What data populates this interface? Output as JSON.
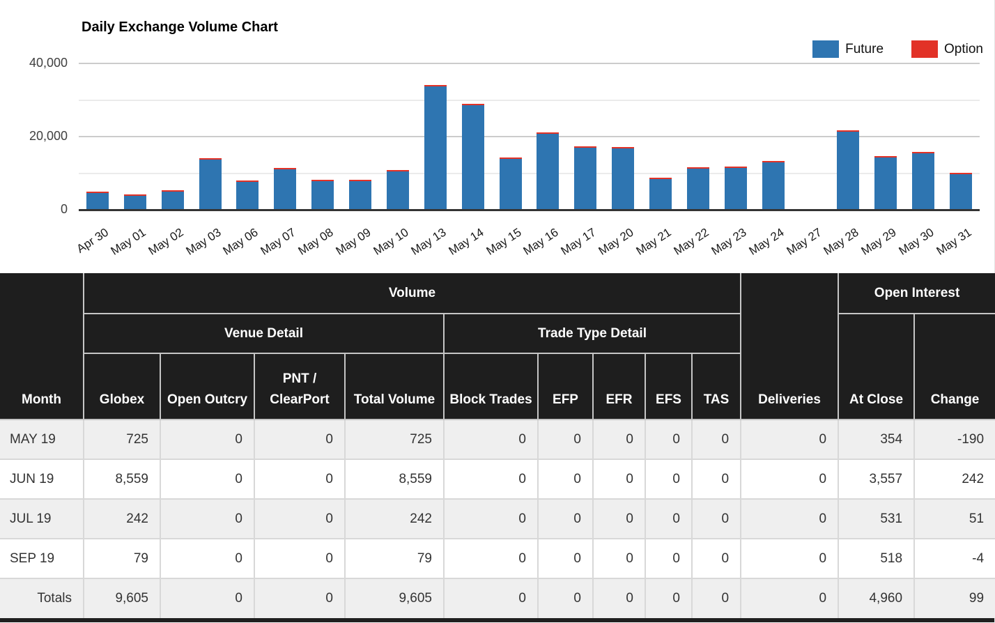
{
  "chart": {
    "title": "Daily Exchange Volume Chart",
    "colors": {
      "future": "#2e75b1",
      "option": "#e23227",
      "axis": "#333333",
      "grid_major": "#cccccc",
      "grid_minor": "#ebebeb"
    }
  },
  "chart_data": {
    "type": "bar",
    "stacked": true,
    "title": "Daily Exchange Volume Chart",
    "xlabel": "",
    "ylabel": "",
    "ylim": [
      0,
      40000
    ],
    "gridlines": [
      10000,
      20000,
      30000,
      40000
    ],
    "y_ticks": [
      {
        "label": "40,000",
        "value": 40000
      },
      {
        "label": "20,000",
        "value": 20000
      },
      {
        "label": "0",
        "value": 0
      }
    ],
    "legend_position": "top-right",
    "categories": [
      "Apr 30",
      "May 01",
      "May 02",
      "May 03",
      "May 06",
      "May 07",
      "May 08",
      "May 09",
      "May 10",
      "May 13",
      "May 14",
      "May 15",
      "May 16",
      "May 17",
      "May 20",
      "May 21",
      "May 22",
      "May 23",
      "May 24",
      "May 27",
      "May 28",
      "May 29",
      "May 30",
      "May 31"
    ],
    "series": [
      {
        "name": "Future",
        "color": "#2e75b1",
        "values": [
          4300,
          3600,
          4700,
          13500,
          7400,
          10800,
          7600,
          7600,
          10300,
          33500,
          28300,
          13700,
          20600,
          16800,
          16500,
          8200,
          11100,
          11200,
          12700,
          0,
          21200,
          14000,
          15300,
          9600
        ]
      },
      {
        "name": "Option",
        "color": "#e23227",
        "values": [
          300,
          300,
          300,
          300,
          300,
          300,
          300,
          300,
          300,
          300,
          300,
          300,
          300,
          300,
          300,
          300,
          300,
          300,
          300,
          0,
          300,
          300,
          300,
          300
        ]
      }
    ]
  },
  "legend": [
    {
      "label": "Future",
      "color": "#2e75b1"
    },
    {
      "label": "Option",
      "color": "#e23227"
    }
  ],
  "table": {
    "header": {
      "month": "Month",
      "volume_group": "Volume",
      "venue_group": "Venue Detail",
      "trade_group": "Trade Type Detail",
      "deliveries": "Deliveries",
      "open_interest_group": "Open Interest",
      "venue_cols": [
        "Globex",
        "Open Outcry",
        "PNT / ClearPort",
        "Total Volume"
      ],
      "trade_cols": [
        "Block Trades",
        "EFP",
        "EFR",
        "EFS",
        "TAS"
      ],
      "oi_cols": [
        "At Close",
        "Change"
      ]
    },
    "rows": [
      {
        "month": "MAY 19",
        "values": [
          "725",
          "0",
          "0",
          "725",
          "0",
          "0",
          "0",
          "0",
          "0",
          "0",
          "354",
          "-190"
        ]
      },
      {
        "month": "JUN 19",
        "values": [
          "8,559",
          "0",
          "0",
          "8,559",
          "0",
          "0",
          "0",
          "0",
          "0",
          "0",
          "3,557",
          "242"
        ]
      },
      {
        "month": "JUL 19",
        "values": [
          "242",
          "0",
          "0",
          "242",
          "0",
          "0",
          "0",
          "0",
          "0",
          "0",
          "531",
          "51"
        ]
      },
      {
        "month": "SEP 19",
        "values": [
          "79",
          "0",
          "0",
          "79",
          "0",
          "0",
          "0",
          "0",
          "0",
          "0",
          "518",
          "-4"
        ]
      }
    ],
    "totals": {
      "label": "Totals",
      "values": [
        "9,605",
        "0",
        "0",
        "9,605",
        "0",
        "0",
        "0",
        "0",
        "0",
        "0",
        "4,960",
        "99"
      ]
    }
  }
}
